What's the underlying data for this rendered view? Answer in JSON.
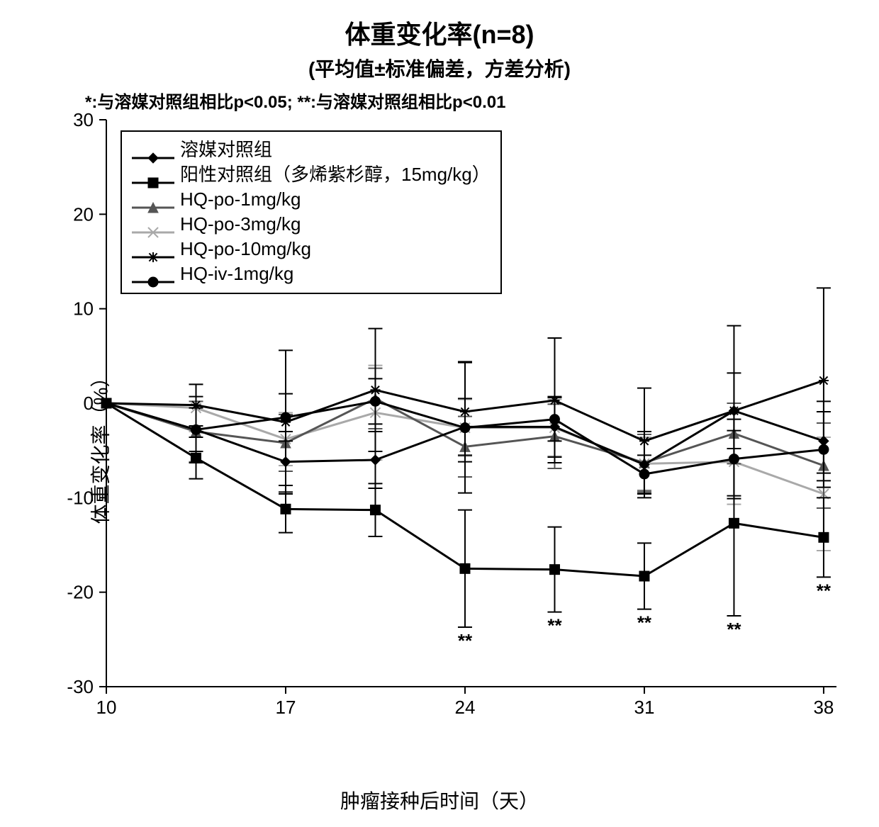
{
  "chart": {
    "type": "line-errorbar",
    "title": "体重变化率(n=8)",
    "subtitle": "(平均值±标准偏差，方差分析)",
    "significance_note": "*:与溶媒对照组相比p<0.05; **:与溶媒对照组相比p<0.01",
    "ylabel": "体重变化率（%）",
    "xlabel": "肿瘤接种后时间（天）",
    "title_fontsize": 36,
    "subtitle_fontsize": 28,
    "note_fontsize": 24,
    "label_fontsize": 28,
    "tick_fontsize": 26,
    "background_color": "#ffffff",
    "axis_color": "#000000",
    "tick_length": 10,
    "line_width": 3,
    "marker_size": 7,
    "errorbar_cap": 10,
    "x": {
      "values": [
        10,
        13.5,
        17,
        20.5,
        24,
        27.5,
        31,
        34.5,
        38
      ],
      "lim": [
        10,
        38.5
      ],
      "ticks": [
        10,
        17,
        24,
        31,
        38
      ]
    },
    "y": {
      "lim": [
        -30,
        30
      ],
      "ticks": [
        -30,
        -20,
        -10,
        0,
        10,
        20,
        30
      ]
    },
    "legend": {
      "items": [
        {
          "key": "vehicle",
          "label": "溶媒对照组"
        },
        {
          "key": "positive",
          "label": "阳性对照组（多烯紫杉醇，15mg/kg）"
        },
        {
          "key": "po1",
          "label": "HQ-po-1mg/kg"
        },
        {
          "key": "po3",
          "label": "HQ-po-3mg/kg"
        },
        {
          "key": "po10",
          "label": "HQ-po-10mg/kg"
        },
        {
          "key": "iv1",
          "label": "HQ-iv-1mg/kg"
        }
      ]
    },
    "series": {
      "vehicle": {
        "color": "#000000",
        "marker": "diamond",
        "y": [
          0,
          -2.8,
          -6.2,
          -6.0,
          -2.5,
          -2.5,
          -6.5,
          -0.8,
          -4.0
        ],
        "err": [
          0,
          3.5,
          3.2,
          3.0,
          3.0,
          3.2,
          3.5,
          4.0,
          4.2
        ]
      },
      "positive": {
        "color": "#000000",
        "marker": "square",
        "y": [
          0,
          -5.8,
          -11.2,
          -11.3,
          -17.5,
          -17.6,
          -18.3,
          -12.7,
          -14.2
        ],
        "err": [
          0,
          2.2,
          2.5,
          2.8,
          6.2,
          4.5,
          3.5,
          9.8,
          4.2
        ],
        "sig": [
          "",
          "",
          "",
          "",
          "**",
          "**",
          "**",
          "**",
          "**"
        ],
        "sig_dy": [
          0,
          0,
          0,
          0,
          -4,
          -4,
          -4,
          -5,
          -4
        ]
      },
      "po1": {
        "color": "#555555",
        "marker": "triangle",
        "y": [
          0,
          -3.0,
          -4.2,
          0.5,
          -4.6,
          -3.5,
          -6.3,
          -3.2,
          -6.6
        ],
        "err": [
          0,
          3.2,
          3.0,
          3.2,
          3.2,
          3.4,
          3.0,
          3.2,
          4.5
        ]
      },
      "po3": {
        "color": "#a9a9a9",
        "marker": "x",
        "y": [
          0,
          -0.5,
          -3.8,
          -1.0,
          -2.6,
          -2.6,
          -6.4,
          -6.2,
          -9.6
        ],
        "err": [
          0,
          2.5,
          2.8,
          5.0,
          3.0,
          3.0,
          2.8,
          4.5,
          6.0
        ]
      },
      "po10": {
        "color": "#000000",
        "marker": "star",
        "y": [
          0,
          -0.2,
          -2.0,
          1.4,
          -0.9,
          0.3,
          -4.0,
          -0.8,
          2.4
        ],
        "err": [
          0,
          2.2,
          7.6,
          6.5,
          5.3,
          6.6,
          5.6,
          9.0,
          9.8
        ]
      },
      "iv1": {
        "color": "#000000",
        "marker": "circle",
        "y": [
          0,
          -2.8,
          -1.5,
          0.2,
          -2.6,
          -1.7,
          -7.5,
          -5.9,
          -4.9
        ],
        "err": [
          0,
          2.3,
          2.5,
          2.4,
          6.9,
          2.3,
          2.0,
          4.2,
          4.0
        ]
      }
    }
  }
}
